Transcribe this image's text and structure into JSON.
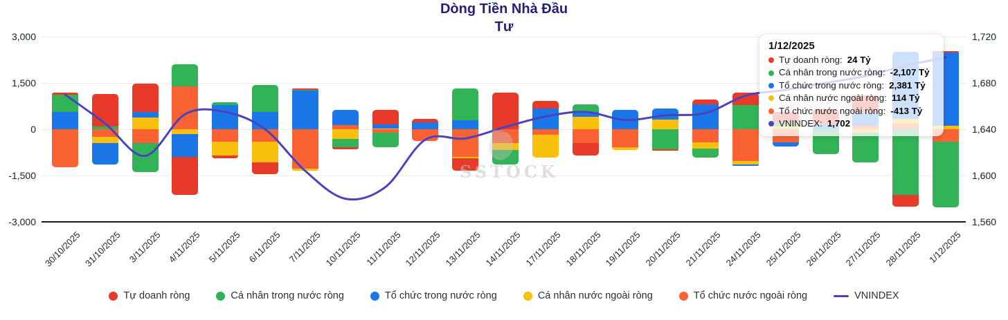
{
  "title": {
    "line1": "Dòng Tiền Nhà Đầu",
    "line2": "Tư"
  },
  "watermark": "SSTOCK",
  "colors": {
    "red": "#e83a2a",
    "green": "#32b357",
    "blue": "#1b76e8",
    "yellow": "#f9c00e",
    "orange": "#fa6234",
    "line": "#4b42c0",
    "title": "#241f7a"
  },
  "axes": {
    "left_ticks": [
      "3,000",
      "1,500",
      "0",
      "-1,500",
      "-3,000"
    ],
    "right_ticks": [
      "1,720",
      "1,680",
      "1,640",
      "1,600",
      "1,560"
    ],
    "left_range": [
      -3000,
      3000
    ],
    "right_range": [
      1560,
      1720
    ]
  },
  "chart_data": {
    "type": "bar",
    "subtype": "stacked-bars-with-line",
    "unit": "Tỷ",
    "categories": [
      "30/10/2025",
      "31/10/2025",
      "3/11/2025",
      "4/11/2025",
      "5/11/2025",
      "6/11/2025",
      "7/11/2025",
      "10/11/2025",
      "11/11/2025",
      "12/11/2025",
      "13/11/2025",
      "14/11/2025",
      "17/11/2025",
      "18/11/2025",
      "19/11/2025",
      "20/11/2025",
      "21/11/2025",
      "24/11/2025",
      "25/11/2025",
      "26/11/2025",
      "27/11/2025",
      "28/11/2025",
      "1/12/2025"
    ],
    "series": [
      {
        "name": "Tự doanh ròng",
        "color_key": "red",
        "values": [
          75,
          1070,
          900,
          -1230,
          -90,
          -375,
          30,
          -50,
          465,
          105,
          -400,
          1180,
          245,
          -395,
          0,
          -60,
          150,
          395,
          335,
          485,
          560,
          -370,
          24
        ]
      },
      {
        "name": "Cá nhân trong nước ròng",
        "color_key": "green",
        "values": [
          560,
          82,
          -935,
          710,
          90,
          858,
          35,
          -280,
          -460,
          0,
          1030,
          -470,
          0,
          260,
          0,
          -640,
          -285,
          790,
          150,
          -810,
          -950,
          -2135,
          -2107
        ]
      },
      {
        "name": "Tổ chức trong nước ròng",
        "color_key": "blue",
        "values": [
          560,
          -695,
          190,
          -725,
          775,
          567,
          1250,
          490,
          127,
          225,
          290,
          0,
          680,
          150,
          620,
          358,
          813,
          -50,
          -130,
          157,
          410,
          2165,
          2381
        ]
      },
      {
        "name": "Cá nhân nước ngoài ròng",
        "color_key": "yellow",
        "values": [
          0,
          -202,
          380,
          -165,
          -445,
          -665,
          -55,
          -310,
          30,
          0,
          -50,
          -225,
          -730,
          400,
          -90,
          307,
          -200,
          -100,
          82,
          0,
          -120,
          165,
          114
        ]
      },
      {
        "name": "Tổ chức nước ngoài ròng",
        "color_key": "orange",
        "values": [
          -1230,
          -253,
          -450,
          1390,
          -410,
          -410,
          -1285,
          130,
          -120,
          -390,
          -890,
          -455,
          -180,
          -455,
          -590,
          0,
          -425,
          -1035,
          -425,
          0,
          120,
          180,
          -413
        ]
      }
    ],
    "line_series": {
      "name": "VNINDEX",
      "color_key": "line",
      "axis": "right",
      "values": [
        1670,
        1645,
        1617,
        1653,
        1655,
        1640,
        1604,
        1580,
        1590,
        1631,
        1632,
        1642,
        1651,
        1655,
        1648,
        1652,
        1654,
        1669,
        1674,
        1680,
        1686,
        1695,
        1702
      ]
    },
    "stack_order_from_zero": [
      "Tổ chức nước ngoài ròng",
      "Cá nhân nước ngoài ròng",
      "Tổ chức trong nước ròng",
      "Cá nhân trong nước ròng",
      "Tự doanh ròng"
    ],
    "left_axis_ticks": [
      3000,
      1500,
      0,
      -1500,
      -3000
    ],
    "right_axis_ticks": [
      1720,
      1680,
      1640,
      1600,
      1560
    ],
    "grid": true,
    "legend_position": "bottom"
  },
  "tooltip": {
    "date": "1/12/2025",
    "rows": [
      {
        "label": "Tự doanh ròng",
        "value": "24 Tỷ",
        "color_key": "red"
      },
      {
        "label": "Cá nhân trong nước ròng",
        "value": "-2,107 Tỷ",
        "color_key": "green"
      },
      {
        "label": "Tổ chức trong nước ròng",
        "value": "2,381 Tỷ",
        "color_key": "blue"
      },
      {
        "label": "Cá nhân nước ngoài ròng",
        "value": "114 Tỷ",
        "color_key": "yellow"
      },
      {
        "label": "Tổ chức nước ngoài ròng",
        "value": "-413 Tỷ",
        "color_key": "orange"
      },
      {
        "label": "VNINDEX",
        "value": "1,702",
        "color_key": "line"
      }
    ]
  },
  "legend": [
    {
      "label": "Tự doanh ròng",
      "color_key": "red",
      "marker": "dot"
    },
    {
      "label": "Cá nhân trong nước ròng",
      "color_key": "green",
      "marker": "dot"
    },
    {
      "label": "Tổ chức trong nước ròng",
      "color_key": "blue",
      "marker": "dot"
    },
    {
      "label": "Cá nhân nước ngoài ròng",
      "color_key": "yellow",
      "marker": "dot"
    },
    {
      "label": "Tổ chức nước ngoài ròng",
      "color_key": "orange",
      "marker": "dot"
    },
    {
      "label": "VNINDEX",
      "color_key": "line",
      "marker": "line"
    }
  ]
}
